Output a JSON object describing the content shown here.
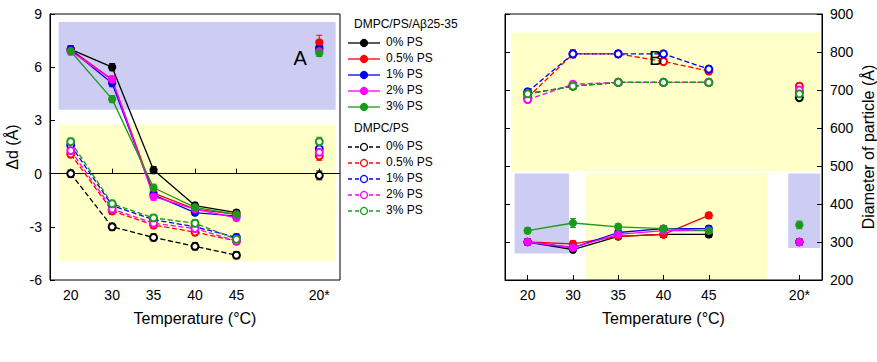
{
  "chart_data": [
    {
      "type": "line",
      "annotations": [
        "A"
      ],
      "xlabel": "Temperature (°C)",
      "ylabel": "Δd (Å)",
      "categories": [
        "20",
        "30",
        "35",
        "40",
        "45",
        null,
        "20*"
      ],
      "ylim": [
        -6,
        9
      ],
      "yticks": [
        -6,
        -3,
        0,
        3,
        6,
        9
      ],
      "legend": "right",
      "series": [
        {
          "name": "0% PS",
          "group": "DMPC/PS/Aβ25-35",
          "color": "#000000",
          "marker": "filled",
          "line_style": "solid",
          "values": [
            7.0,
            6.0,
            0.2,
            -1.8,
            -2.2,
            null,
            7.1
          ],
          "errors": [
            0.2,
            0.2,
            0.2,
            0.15,
            0.15,
            null,
            0.2
          ]
        },
        {
          "name": "0.5% PS",
          "group": "DMPC/PS/Aβ25-35",
          "color": "#ff0000",
          "marker": "filled",
          "line_style": "solid",
          "values": [
            7.0,
            5.3,
            -1.1,
            -2.0,
            -2.3,
            null,
            7.4
          ],
          "errors": [
            0.2,
            0.2,
            0.2,
            0.15,
            0.15,
            null,
            0.4
          ]
        },
        {
          "name": "1% PS",
          "group": "DMPC/PS/Aβ25-35",
          "color": "#0000ff",
          "marker": "filled",
          "line_style": "solid",
          "values": [
            7.0,
            5.1,
            -1.2,
            -2.2,
            -2.4,
            null,
            7.0
          ],
          "errors": [
            0.2,
            0.2,
            0.2,
            0.15,
            0.15,
            null,
            0.2
          ]
        },
        {
          "name": "2% PS",
          "group": "DMPC/PS/Aβ25-35",
          "color": "#ff00ff",
          "marker": "filled",
          "line_style": "solid",
          "values": [
            6.9,
            5.3,
            -1.3,
            -2.0,
            -2.5,
            null,
            6.9
          ],
          "errors": [
            0.2,
            0.2,
            0.2,
            0.15,
            0.15,
            null,
            0.2
          ]
        },
        {
          "name": "3% PS",
          "group": "DMPC/PS/Aβ25-35",
          "color": "#1a9a1a",
          "marker": "filled",
          "line_style": "solid",
          "values": [
            6.9,
            4.2,
            -0.8,
            -1.9,
            -2.3,
            null,
            6.8
          ],
          "errors": [
            0.2,
            0.2,
            0.2,
            0.15,
            0.15,
            null,
            0.2
          ]
        },
        {
          "name": "0% PS",
          "group": "DMPC/PS",
          "color": "#000000",
          "marker": "open",
          "line_style": "dashed",
          "values": [
            0.0,
            -3.0,
            -3.6,
            -4.1,
            -4.6,
            null,
            -0.1
          ],
          "errors": [
            0.2,
            0.2,
            0.2,
            0.2,
            0.2,
            null,
            0.25
          ]
        },
        {
          "name": "0.5% PS",
          "group": "DMPC/PS",
          "color": "#ff0000",
          "marker": "open",
          "line_style": "dashed",
          "values": [
            1.1,
            -2.1,
            -2.9,
            -3.3,
            -3.8,
            null,
            1.0
          ],
          "errors": [
            0.2,
            0.2,
            0.2,
            0.2,
            0.2,
            null,
            0.25
          ]
        },
        {
          "name": "1% PS",
          "group": "DMPC/PS",
          "color": "#0000ff",
          "marker": "open",
          "line_style": "dashed",
          "values": [
            1.6,
            -1.8,
            -2.6,
            -3.0,
            -3.6,
            null,
            1.4
          ],
          "errors": [
            0.2,
            0.2,
            0.2,
            0.2,
            0.2,
            null,
            0.25
          ]
        },
        {
          "name": "2% PS",
          "group": "DMPC/PS",
          "color": "#ff00ff",
          "marker": "open",
          "line_style": "dashed",
          "values": [
            1.3,
            -2.0,
            -2.8,
            -3.1,
            -3.8,
            null,
            1.2
          ],
          "errors": [
            0.2,
            0.2,
            0.2,
            0.2,
            0.2,
            null,
            0.25
          ]
        },
        {
          "name": "3% PS",
          "group": "DMPC/PS",
          "color": "#1a9a1a",
          "marker": "open",
          "line_style": "dashed",
          "values": [
            1.8,
            -1.7,
            -2.5,
            -2.8,
            -3.7,
            null,
            1.8
          ],
          "errors": [
            0.2,
            0.2,
            0.2,
            0.2,
            0.2,
            null,
            0.25
          ]
        }
      ]
    },
    {
      "type": "line",
      "annotations": [
        "B"
      ],
      "xlabel": "Temperature (°C)",
      "y2label": "Diameter of particle (Å)",
      "categories": [
        "20",
        "30",
        "35",
        "40",
        "45",
        null,
        "20*"
      ],
      "y2lim": [
        200,
        900
      ],
      "y2ticks": [
        200,
        300,
        400,
        500,
        600,
        700,
        800,
        900
      ],
      "series": [
        {
          "name": "0% PS",
          "group": "DMPC/PS/Aβ25-35",
          "axis": "y2",
          "color": "#000000",
          "marker": "filled",
          "line_style": "solid",
          "values": [
            300,
            280,
            315,
            320,
            320,
            null,
            300
          ],
          "errors": [
            8,
            8,
            8,
            8,
            8,
            null,
            8
          ]
        },
        {
          "name": "0.5% PS",
          "group": "DMPC/PS/Aβ25-35",
          "axis": "y2",
          "color": "#ff0000",
          "marker": "filled",
          "line_style": "solid",
          "values": [
            300,
            295,
            315,
            320,
            370,
            null,
            300
          ],
          "errors": [
            8,
            8,
            8,
            8,
            8,
            null,
            6
          ]
        },
        {
          "name": "1% PS",
          "group": "DMPC/PS/Aβ25-35",
          "axis": "y2",
          "color": "#0000ff",
          "marker": "filled",
          "line_style": "solid",
          "values": [
            300,
            285,
            325,
            335,
            335,
            null,
            300
          ],
          "errors": [
            8,
            8,
            8,
            8,
            8,
            null,
            8
          ]
        },
        {
          "name": "2% PS",
          "group": "DMPC/PS/Aβ25-35",
          "axis": "y2",
          "color": "#ff00ff",
          "marker": "filled",
          "line_style": "solid",
          "values": [
            300,
            285,
            320,
            330,
            330,
            null,
            300
          ],
          "errors": [
            8,
            8,
            8,
            8,
            8,
            null,
            8
          ]
        },
        {
          "name": "3% PS",
          "group": "DMPC/PS/Aβ25-35",
          "axis": "y2",
          "color": "#1a9a1a",
          "marker": "filled",
          "line_style": "solid",
          "values": [
            330,
            350,
            340,
            335,
            330,
            null,
            345
          ],
          "errors": [
            8,
            12,
            8,
            8,
            8,
            null,
            10
          ]
        },
        {
          "name": "0% PS",
          "group": "DMPC/PS",
          "axis": "y2",
          "color": "#000000",
          "marker": "open",
          "line_style": "dashed",
          "values": [
            690,
            710,
            720,
            720,
            720,
            null,
            680
          ],
          "errors": [
            8,
            8,
            8,
            8,
            8,
            null,
            8
          ]
        },
        {
          "name": "0.5% PS",
          "group": "DMPC/PS",
          "axis": "y2",
          "color": "#ff0000",
          "marker": "open",
          "line_style": "dashed",
          "values": [
            680,
            795,
            795,
            775,
            750,
            null,
            710
          ],
          "errors": [
            8,
            10,
            8,
            8,
            8,
            null,
            8
          ]
        },
        {
          "name": "1% PS",
          "group": "DMPC/PS",
          "axis": "y2",
          "color": "#0000ff",
          "marker": "open",
          "line_style": "dashed",
          "values": [
            695,
            795,
            795,
            795,
            755,
            null,
            695
          ],
          "errors": [
            8,
            10,
            8,
            8,
            8,
            null,
            8
          ]
        },
        {
          "name": "2% PS",
          "group": "DMPC/PS",
          "axis": "y2",
          "color": "#ff00ff",
          "marker": "open",
          "line_style": "dashed",
          "values": [
            675,
            715,
            720,
            720,
            720,
            null,
            700
          ],
          "errors": [
            8,
            8,
            8,
            8,
            8,
            null,
            8
          ]
        },
        {
          "name": "3% PS",
          "group": "DMPC/PS",
          "axis": "y2",
          "color": "#1a9a1a",
          "marker": "open",
          "line_style": "dashed",
          "values": [
            690,
            710,
            720,
            720,
            720,
            null,
            690
          ],
          "errors": [
            8,
            8,
            8,
            8,
            8,
            null,
            8
          ]
        }
      ]
    }
  ]
}
